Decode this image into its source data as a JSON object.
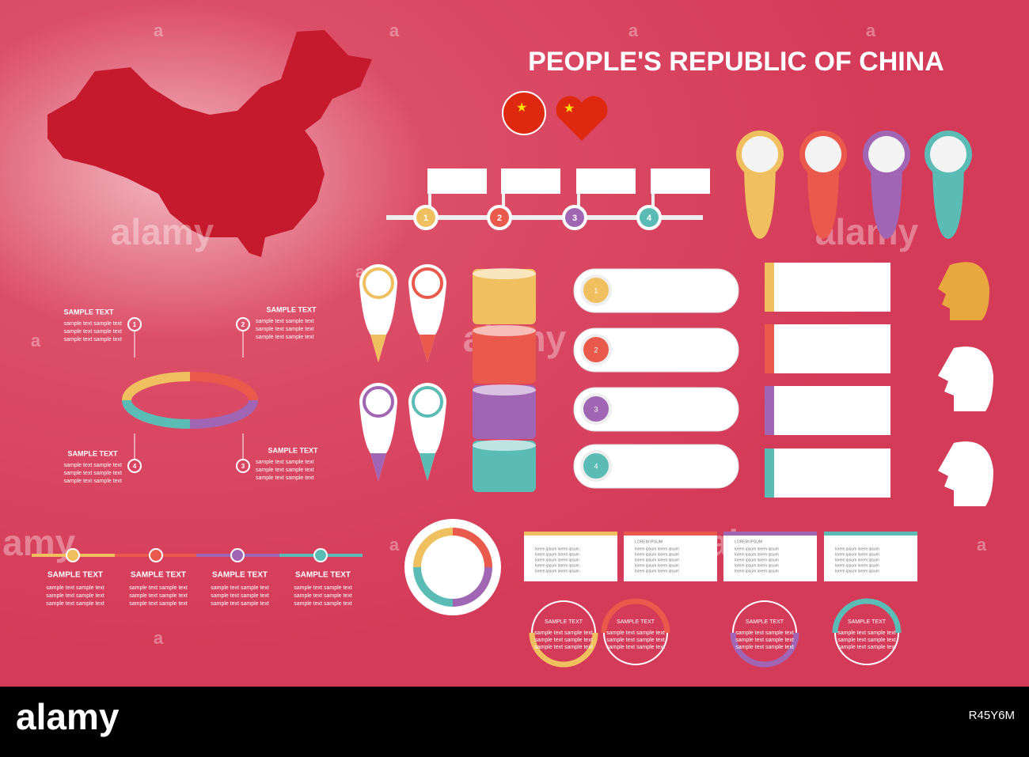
{
  "header": {
    "title": "PEOPLE'S REPUBLIC OF CHINA"
  },
  "ring_diagram": {
    "items": [
      {
        "number": 1,
        "heading": "SAMPLE TEXT",
        "lines": [
          "sample text  sample text",
          "sample text  sample text",
          "sample text  sample text"
        ]
      },
      {
        "number": 2,
        "heading": "SAMPLE TEXT",
        "lines": [
          "sample text  sample text",
          "sample text  sample text",
          "sample text  sample text"
        ]
      },
      {
        "number": 3,
        "heading": "SAMPLE TEXT",
        "lines": [
          "sample text  sample text",
          "sample text  sample text",
          "sample text  sample text"
        ]
      },
      {
        "number": 4,
        "heading": "SAMPLE TEXT",
        "lines": [
          "sample text  sample text",
          "sample text  sample text",
          "sample text  sample text"
        ]
      }
    ]
  },
  "step_timeline": {
    "numbers": [
      1,
      2,
      3,
      4
    ]
  },
  "pill_list": {
    "numbers": [
      1,
      2,
      3,
      4
    ]
  },
  "bottom_timeline": {
    "items": [
      {
        "heading": "SAMPLE TEXT",
        "lines": [
          "sample text  sample text",
          "sample text  sample text",
          "sample text  sample text"
        ]
      },
      {
        "heading": "SAMPLE TEXT",
        "lines": [
          "sample text  sample text",
          "sample text  sample text",
          "sample text  sample text"
        ]
      },
      {
        "heading": "SAMPLE TEXT",
        "lines": [
          "sample text  sample text",
          "sample text  sample text",
          "sample text  sample text"
        ]
      },
      {
        "heading": "SAMPLE TEXT",
        "lines": [
          "sample text  sample text",
          "sample text  sample text",
          "sample text  sample text"
        ]
      }
    ]
  },
  "cards": {
    "headings": [
      "LOREM IPSUM",
      "LOREM IPSUM"
    ],
    "line": "lorem ipsum   lorem ipsum"
  },
  "circle_notes": {
    "items": [
      {
        "heading": "SAMPLE TEXT",
        "lines": [
          "sample text  sample text",
          "sample text  sample text",
          "sample text  sample text"
        ]
      },
      {
        "heading": "SAMPLE TEXT",
        "lines": [
          "sample text  sample text",
          "sample text  sample text",
          "sample text  sample text"
        ]
      },
      {
        "heading": "SAMPLE TEXT",
        "lines": [
          "sample text  sample text",
          "sample text  sample text",
          "sample text  sample text"
        ]
      },
      {
        "heading": "SAMPLE TEXT",
        "lines": [
          "sample text  sample text",
          "sample text  sample text",
          "sample text  sample text"
        ]
      }
    ]
  },
  "watermark": {
    "brand": "alamy",
    "letter": "a"
  },
  "footer": {
    "brand": "alamy",
    "image_id": "R45Y6M"
  }
}
